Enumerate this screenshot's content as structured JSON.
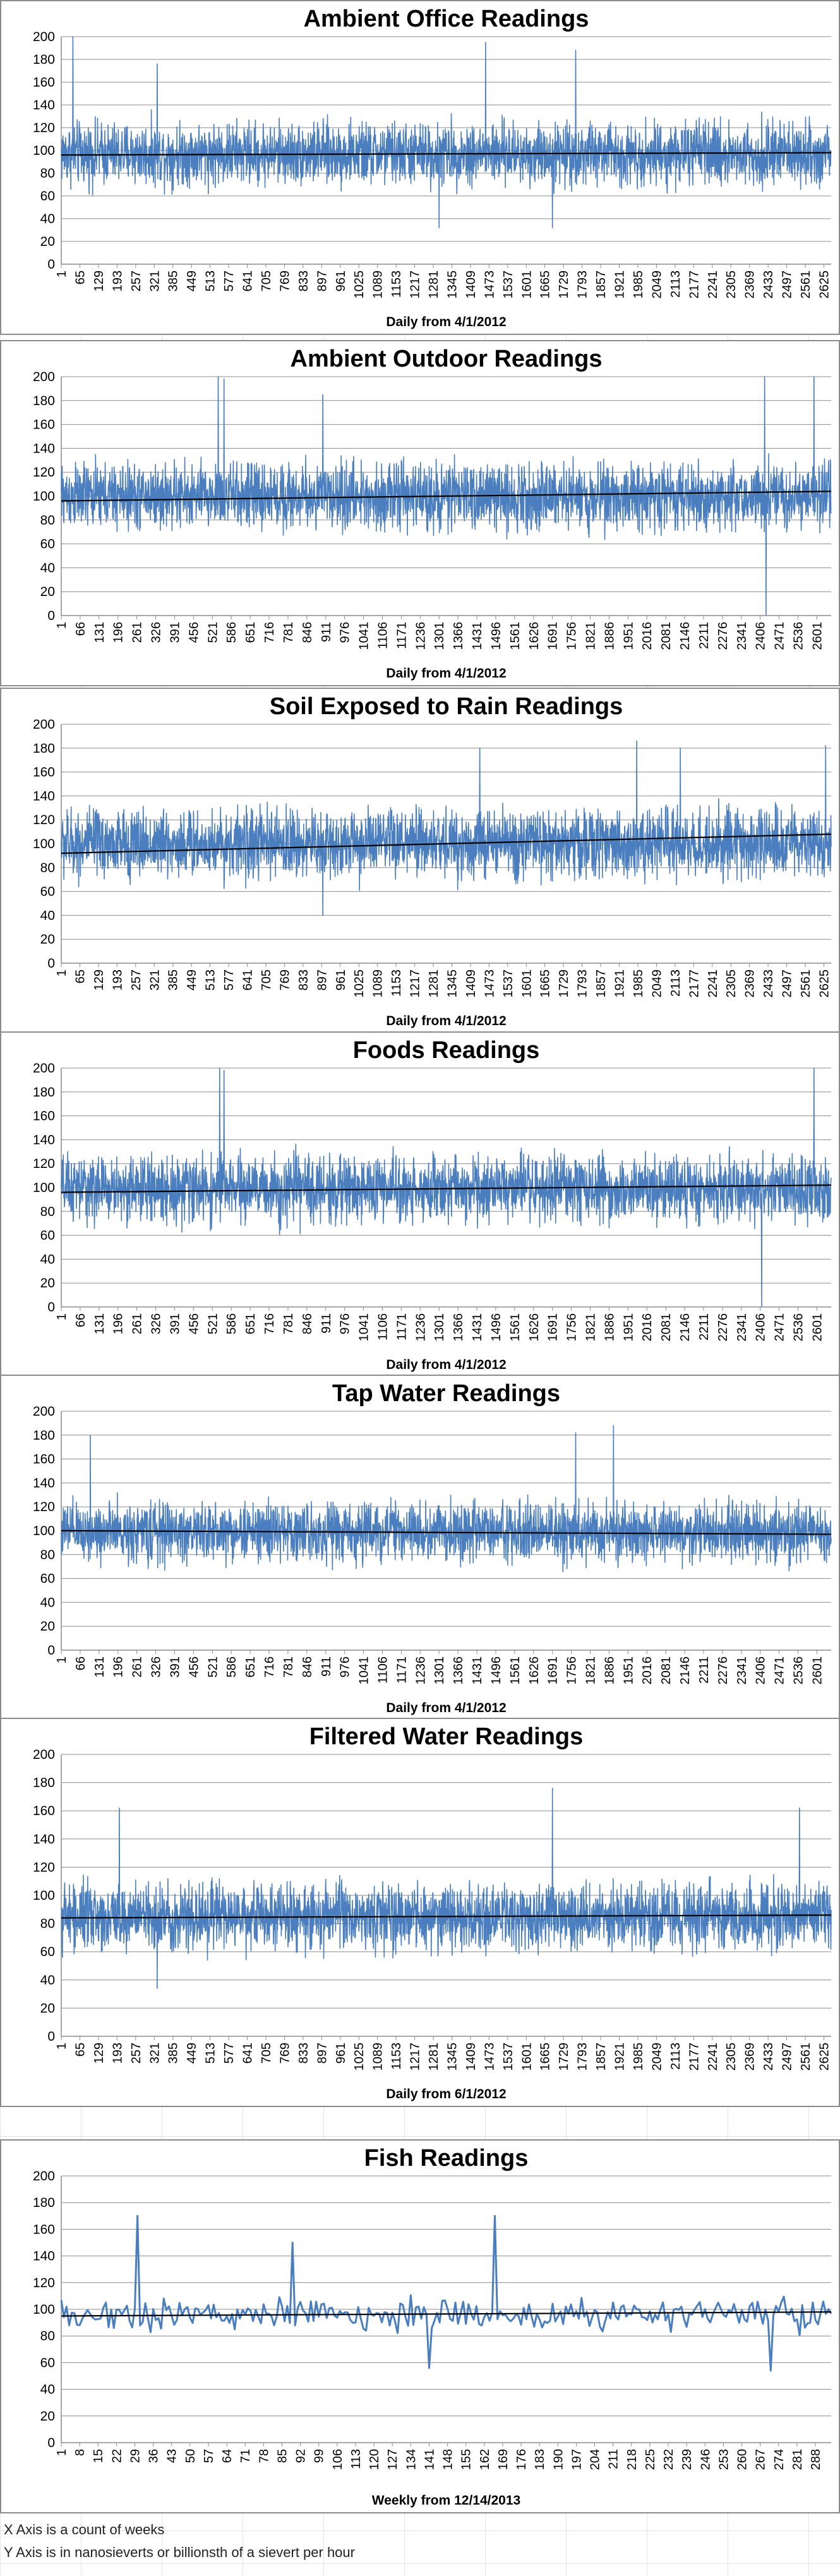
{
  "colors": {
    "series": "#4a7ebf",
    "trend": "#000000",
    "grid": "#8c8c8c",
    "text": "#000000"
  },
  "notes": {
    "x_axis": "X Axis is a count of weeks",
    "y_axis": "Y Axis is in nanosieverts or billionsth of a sievert per hour"
  },
  "chart_data": [
    {
      "type": "line",
      "title": "Ambient Office Readings",
      "xlabel": "Daily from 4/1/2012",
      "ylabel": "",
      "ylim": [
        0,
        200
      ],
      "yticks": [
        0,
        20,
        40,
        60,
        80,
        100,
        120,
        140,
        160,
        180,
        200
      ],
      "grid": true,
      "legend": "none",
      "x_count": 2650,
      "xtick_labels": [
        "1",
        "65",
        "129",
        "193",
        "257",
        "321",
        "385",
        "449",
        "513",
        "577",
        "641",
        "705",
        "769",
        "833",
        "897",
        "961",
        "1025",
        "1089",
        "1153",
        "1217",
        "1281",
        "1345",
        "1409",
        "1473",
        "1537",
        "1601",
        "1665",
        "1729",
        "1793",
        "1857",
        "1921",
        "1985",
        "2049",
        "2113",
        "2177",
        "2241",
        "2305",
        "2369",
        "2433",
        "2497",
        "2561",
        "2625"
      ],
      "series": [
        {
          "mean": 97,
          "amplitude": 40,
          "min": 32,
          "max": 200,
          "peaks": [
            [
              40,
              200
            ],
            [
              330,
              176
            ],
            [
              1460,
              195
            ],
            [
              1770,
              188
            ],
            [
              1300,
              32
            ],
            [
              1690,
              32
            ]
          ]
        }
      ],
      "trend": {
        "start": 96,
        "end": 98
      }
    },
    {
      "type": "line",
      "title": "Ambient Outdoor Readings",
      "xlabel": "Daily from 4/1/2012",
      "ylabel": "",
      "ylim": [
        0,
        200
      ],
      "yticks": [
        0,
        20,
        40,
        60,
        80,
        100,
        120,
        140,
        160,
        180,
        200
      ],
      "grid": true,
      "legend": "none",
      "x_count": 2650,
      "xtick_labels": [
        "1",
        "66",
        "131",
        "196",
        "261",
        "326",
        "391",
        "456",
        "521",
        "586",
        "651",
        "716",
        "781",
        "846",
        "911",
        "976",
        "1041",
        "1106",
        "1171",
        "1236",
        "1301",
        "1366",
        "1431",
        "1496",
        "1561",
        "1626",
        "1691",
        "1756",
        "1821",
        "1886",
        "1951",
        "2016",
        "2081",
        "2146",
        "2211",
        "2276",
        "2341",
        "2406",
        "2471",
        "2536",
        "2601"
      ],
      "series": [
        {
          "mean": 100,
          "amplitude": 40,
          "min": 0,
          "max": 200,
          "peaks": [
            [
              540,
              200
            ],
            [
              560,
              198
            ],
            [
              900,
              185
            ],
            [
              2420,
              200
            ],
            [
              2590,
              200
            ],
            [
              2425,
              0
            ]
          ]
        }
      ],
      "trend": {
        "start": 96,
        "end": 104
      }
    },
    {
      "type": "line",
      "title": "Soil Exposed to Rain Readings",
      "xlabel": "Daily from 4/1/2012",
      "ylabel": "",
      "ylim": [
        0,
        200
      ],
      "yticks": [
        0,
        20,
        40,
        60,
        80,
        100,
        120,
        140,
        160,
        180,
        200
      ],
      "grid": true,
      "legend": "none",
      "x_count": 2650,
      "xtick_labels": [
        "1",
        "65",
        "129",
        "193",
        "257",
        "321",
        "385",
        "449",
        "513",
        "577",
        "641",
        "705",
        "769",
        "833",
        "897",
        "961",
        "1025",
        "1089",
        "1153",
        "1217",
        "1281",
        "1345",
        "1409",
        "1473",
        "1537",
        "1601",
        "1665",
        "1729",
        "1793",
        "1857",
        "1921",
        "1985",
        "2049",
        "2113",
        "2177",
        "2241",
        "2305",
        "2369",
        "2433",
        "2497",
        "2561",
        "2625"
      ],
      "series": [
        {
          "mean": 100,
          "amplitude": 42,
          "min": 36,
          "max": 186,
          "peaks": [
            [
              1980,
              186
            ],
            [
              1440,
              180
            ],
            [
              2630,
              182
            ],
            [
              2130,
              180
            ],
            [
              900,
              40
            ]
          ]
        }
      ],
      "trend": {
        "start": 92,
        "end": 108
      }
    },
    {
      "type": "line",
      "title": "Foods Readings",
      "xlabel": "Daily from 4/1/2012",
      "ylabel": "",
      "ylim": [
        0,
        200
      ],
      "yticks": [
        0,
        20,
        40,
        60,
        80,
        100,
        120,
        140,
        160,
        180,
        200
      ],
      "grid": true,
      "legend": "none",
      "x_count": 2650,
      "xtick_labels": [
        "1",
        "66",
        "131",
        "196",
        "261",
        "326",
        "391",
        "456",
        "521",
        "586",
        "651",
        "716",
        "781",
        "846",
        "911",
        "976",
        "1041",
        "1106",
        "1171",
        "1236",
        "1301",
        "1366",
        "1431",
        "1496",
        "1561",
        "1626",
        "1691",
        "1756",
        "1821",
        "1886",
        "1951",
        "2016",
        "2081",
        "2146",
        "2211",
        "2276",
        "2341",
        "2406",
        "2471",
        "2536",
        "2601"
      ],
      "series": [
        {
          "mean": 99,
          "amplitude": 40,
          "min": 0,
          "max": 200,
          "peaks": [
            [
              545,
              200
            ],
            [
              560,
              198
            ],
            [
              2590,
              200
            ],
            [
              2410,
              0
            ]
          ]
        }
      ],
      "trend": {
        "start": 96,
        "end": 102
      }
    },
    {
      "type": "line",
      "title": "Tap Water Readings",
      "xlabel": "Daily from 4/1/2012",
      "ylabel": "",
      "ylim": [
        0,
        200
      ],
      "yticks": [
        0,
        20,
        40,
        60,
        80,
        100,
        120,
        140,
        160,
        180,
        200
      ],
      "grid": true,
      "legend": "none",
      "x_count": 2650,
      "xtick_labels": [
        "1",
        "66",
        "131",
        "196",
        "261",
        "326",
        "391",
        "456",
        "521",
        "586",
        "651",
        "716",
        "781",
        "846",
        "911",
        "976",
        "1041",
        "1106",
        "1171",
        "1236",
        "1301",
        "1366",
        "1431",
        "1496",
        "1561",
        "1626",
        "1691",
        "1756",
        "1821",
        "1886",
        "1951",
        "2016",
        "2081",
        "2146",
        "2211",
        "2276",
        "2341",
        "2406",
        "2471",
        "2536",
        "2601"
      ],
      "series": [
        {
          "mean": 99,
          "amplitude": 36,
          "min": 45,
          "max": 188,
          "peaks": [
            [
              1900,
              188
            ],
            [
              1770,
              182
            ],
            [
              100,
              180
            ]
          ]
        }
      ],
      "trend": {
        "start": 100,
        "end": 97
      }
    },
    {
      "type": "line",
      "title": "Filtered Water Readings",
      "xlabel": "Daily from 6/1/2012",
      "ylabel": "",
      "ylim": [
        0,
        200
      ],
      "yticks": [
        0,
        20,
        40,
        60,
        80,
        100,
        120,
        140,
        160,
        180,
        200
      ],
      "grid": true,
      "legend": "none",
      "x_count": 2650,
      "xtick_labels": [
        "1",
        "65",
        "129",
        "193",
        "257",
        "321",
        "385",
        "449",
        "513",
        "577",
        "641",
        "705",
        "769",
        "833",
        "897",
        "961",
        "1025",
        "1089",
        "1153",
        "1217",
        "1281",
        "1345",
        "1409",
        "1473",
        "1537",
        "1601",
        "1665",
        "1729",
        "1793",
        "1857",
        "1921",
        "1985",
        "2049",
        "2113",
        "2177",
        "2241",
        "2305",
        "2369",
        "2433",
        "2497",
        "2561",
        "2625"
      ],
      "series": [
        {
          "mean": 85,
          "amplitude": 34,
          "min": 34,
          "max": 176,
          "peaks": [
            [
              1690,
              176
            ],
            [
              2540,
              162
            ],
            [
              200,
              162
            ],
            [
              330,
              34
            ]
          ]
        }
      ],
      "trend": {
        "start": 84,
        "end": 86
      }
    },
    {
      "type": "line",
      "title": "Fish Readings",
      "xlabel": "Weekly from 12/14/2013",
      "ylabel": "",
      "ylim": [
        0,
        200
      ],
      "yticks": [
        0,
        20,
        40,
        60,
        80,
        100,
        120,
        140,
        160,
        180,
        200
      ],
      "grid": true,
      "legend": "none",
      "x_count": 294,
      "xtick_labels": [
        "1",
        "8",
        "15",
        "22",
        "29",
        "36",
        "43",
        "50",
        "57",
        "64",
        "71",
        "78",
        "85",
        "92",
        "99",
        "106",
        "113",
        "120",
        "127",
        "134",
        "141",
        "148",
        "155",
        "162",
        "169",
        "176",
        "183",
        "190",
        "197",
        "204",
        "211",
        "218",
        "225",
        "232",
        "239",
        "246",
        "253",
        "260",
        "267",
        "274",
        "281",
        "288"
      ],
      "series": [
        {
          "mean": 96,
          "amplitude": 18,
          "min": 54,
          "max": 170,
          "peaks": [
            [
              29,
              170
            ],
            [
              165,
              170
            ],
            [
              88,
              150
            ],
            [
              270,
              54
            ],
            [
              140,
              56
            ]
          ]
        }
      ],
      "trend": {
        "start": 95,
        "end": 98
      }
    }
  ]
}
